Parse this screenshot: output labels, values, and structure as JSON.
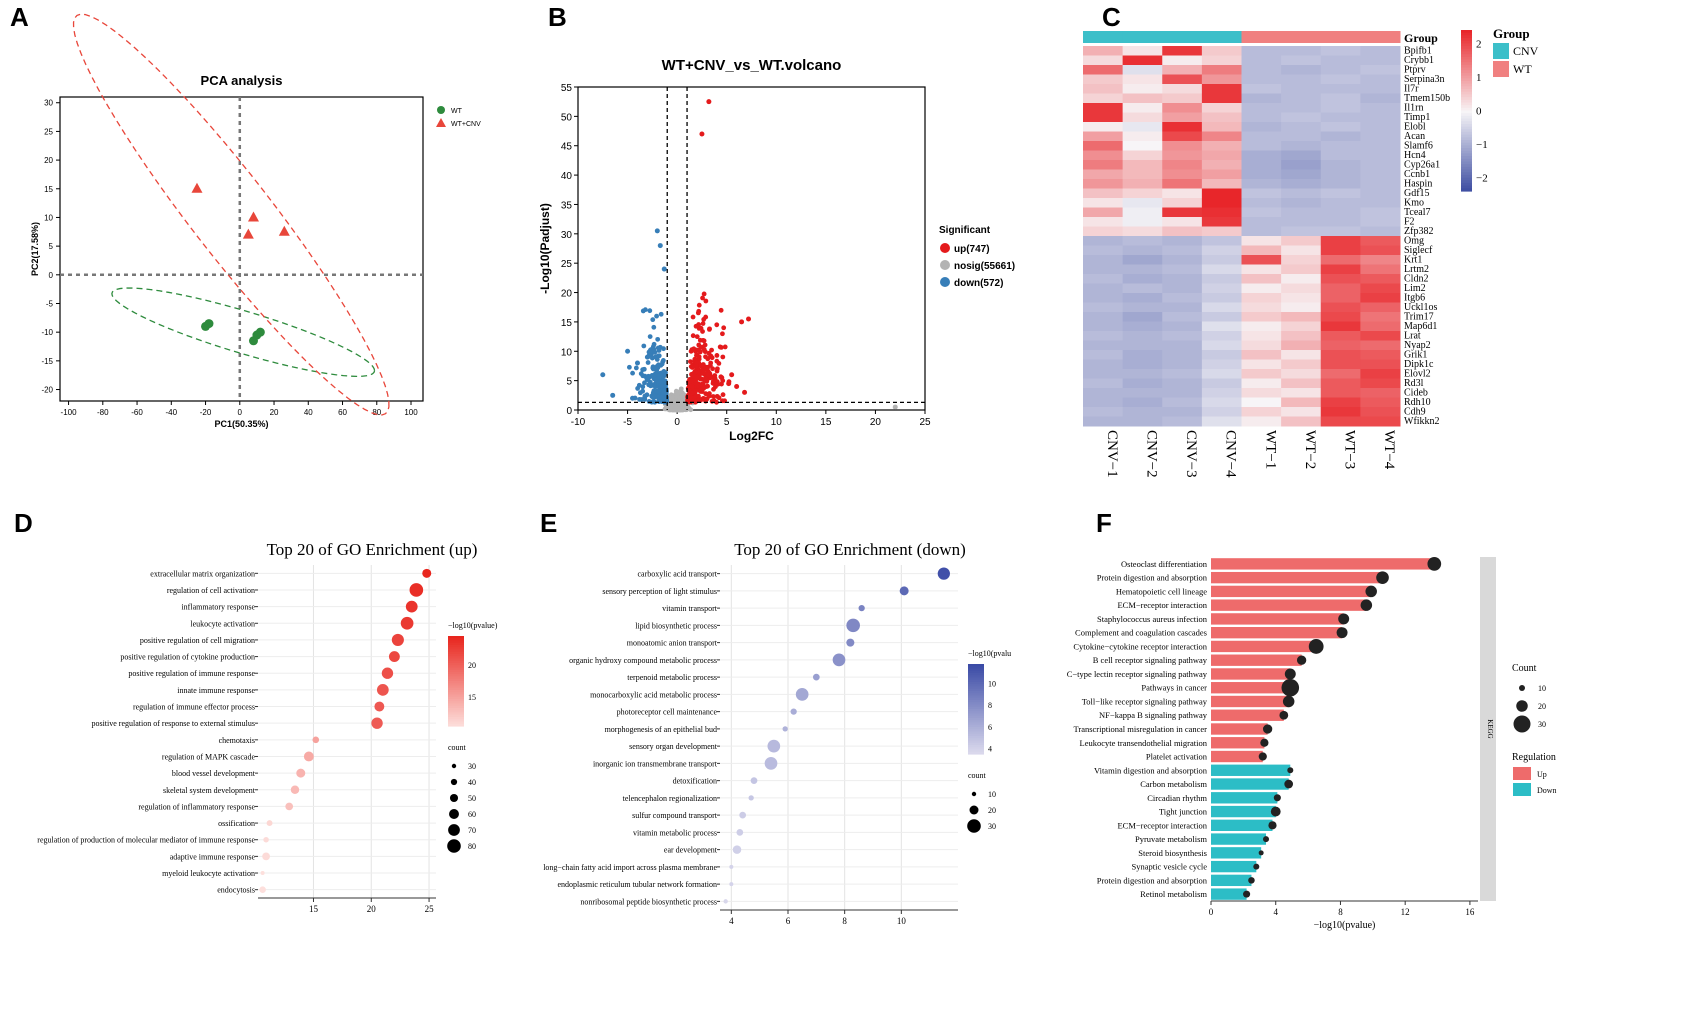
{
  "panel_letters": [
    "A",
    "B",
    "C",
    "D",
    "E",
    "F"
  ],
  "chart_data": [
    {
      "id": "A",
      "type": "scatter",
      "title": "PCA analysis",
      "xlabel": "PC1(50.35%)",
      "ylabel": "PC2(17.58%)",
      "xlim": [
        -105,
        107
      ],
      "ylim": [
        -22,
        31
      ],
      "xticks": [
        -100,
        -80,
        -60,
        -40,
        -20,
        0,
        20,
        40,
        60,
        80,
        100
      ],
      "yticks": [
        -20,
        -15,
        -10,
        -5,
        0,
        5,
        10,
        15,
        20,
        25,
        30
      ],
      "series": [
        {
          "name": "WT",
          "marker": "circle",
          "color": "#2e8b3d",
          "points": [
            [
              -20,
              -9
            ],
            [
              -18,
              -8.5
            ],
            [
              10,
              -10.5
            ],
            [
              12,
              -10
            ],
            [
              8,
              -11.5
            ]
          ],
          "ellipse": {
            "cx": 2,
            "cy": -10,
            "rx": 77,
            "ry": 3.8,
            "angle_deg": -5
          }
        },
        {
          "name": "WT+CNV",
          "marker": "triangle",
          "color": "#e8463a",
          "points": [
            [
              -25,
              15
            ],
            [
              8,
              10
            ],
            [
              26,
              7.5
            ],
            [
              5,
              7
            ]
          ],
          "ellipse": {
            "cx": -5,
            "cy": 10.5,
            "rx": 98,
            "ry": 10.5,
            "angle_deg": -20
          }
        }
      ]
    },
    {
      "id": "B",
      "type": "scatter",
      "title": "WT+CNV_vs_WT.volcano",
      "xlabel": "Log2FC",
      "ylabel": "-Log10(Padjust)",
      "xlim": [
        -10,
        25
      ],
      "ylim": [
        0,
        55
      ],
      "xticks": [
        -10,
        -5,
        0,
        5,
        10,
        15,
        20,
        25
      ],
      "yticks": [
        0,
        5,
        10,
        15,
        20,
        25,
        30,
        35,
        40,
        45,
        50,
        55
      ],
      "thresholds": {
        "log2fc": [
          -1,
          1
        ],
        "padj": 1.3
      },
      "legend_title": "Significant",
      "series": [
        {
          "name": "up(747)",
          "color": "#e41a1c",
          "direction": "up",
          "count": 747
        },
        {
          "name": "nosig(55661)",
          "color": "#b3b3b3",
          "direction": "none",
          "count": 55661
        },
        {
          "name": "down(572)",
          "color": "#377eb8",
          "direction": "down",
          "count": 572
        }
      ],
      "notable_points": {
        "up": [
          [
            3.2,
            52.5
          ],
          [
            2.5,
            47
          ],
          [
            6.5,
            15
          ],
          [
            7.2,
            15.5
          ],
          [
            5.5,
            6
          ],
          [
            4.5,
            5.5
          ],
          [
            6,
            4
          ],
          [
            5.2,
            4.5
          ],
          [
            6.8,
            3
          ]
        ],
        "down": [
          [
            -2,
            30.5
          ],
          [
            -1.7,
            28
          ],
          [
            -1.3,
            24
          ],
          [
            -5,
            10
          ],
          [
            -7.5,
            6
          ],
          [
            -4,
            8
          ],
          [
            -3,
            9
          ],
          [
            -6.5,
            2.5
          ],
          [
            -4.5,
            2
          ]
        ],
        "nosig": [
          [
            22,
            0.5
          ],
          [
            0.5,
            0.8
          ],
          [
            -0.5,
            0.6
          ]
        ]
      }
    },
    {
      "id": "C",
      "type": "heatmap",
      "annotation_title": "Group",
      "legend_title": "Group",
      "groups": [
        {
          "name": "CNV",
          "color": "#3cbfc9"
        },
        {
          "name": "WT",
          "color": "#f08080"
        }
      ],
      "columns": [
        "CNV−1",
        "CNV−2",
        "CNV−3",
        "CNV−4",
        "WT−1",
        "WT−2",
        "WT−3",
        "WT−4"
      ],
      "column_groups": [
        "CNV",
        "CNV",
        "CNV",
        "CNV",
        "WT",
        "WT",
        "WT",
        "WT"
      ],
      "rows": [
        "Bpifb1",
        "Crybb1",
        "Ptprv",
        "Serpina3n",
        "Il7r",
        "Tmem150b",
        "Il1rn",
        "Timp1",
        "Elobl",
        "Acan",
        "Slamf6",
        "Hcn4",
        "Cyp26a1",
        "Ccnb1",
        "Haspin",
        "Gdf15",
        "Kmo",
        "Tceal7",
        "F2",
        "Zfp382",
        "Omg",
        "Siglecf",
        "Krt1",
        "Lrtm2",
        "Cldn2",
        "Lim2",
        "Itgb6",
        "Uckl1os",
        "Trim17",
        "Map6d1",
        "Lrat",
        "Nyap2",
        "Grik1",
        "Dipk1c",
        "Elovl2",
        "Rd3l",
        "Cideb",
        "Rdh10",
        "Cdh9",
        "Wfikkn2"
      ],
      "scale_ticks": [
        "2",
        "1",
        "0",
        "−1",
        "−2"
      ],
      "scale_range": [
        -2.4,
        2.4
      ],
      "values": [
        [
          0.8,
          0.2,
          2.2,
          0.5,
          -0.8,
          -0.8,
          -0.7,
          -0.8
        ],
        [
          0.3,
          2.3,
          0.1,
          0.4,
          -0.8,
          -0.7,
          -0.8,
          -0.8
        ],
        [
          1.6,
          -0.3,
          0.8,
          1.4,
          -0.8,
          -0.9,
          -0.8,
          -0.7
        ],
        [
          0.5,
          0.2,
          1.9,
          1.1,
          -0.8,
          -0.8,
          -0.7,
          -0.8
        ],
        [
          0.6,
          0.1,
          0.3,
          2.2,
          -0.7,
          -0.8,
          -0.8,
          -0.8
        ],
        [
          0.4,
          0.6,
          0.5,
          2.2,
          -0.9,
          -0.8,
          -0.7,
          -0.9
        ],
        [
          2.2,
          0.1,
          1.2,
          0.4,
          -0.8,
          -0.8,
          -0.7,
          -0.8
        ],
        [
          2.2,
          0.3,
          1.0,
          0.6,
          -0.8,
          -0.7,
          -0.8,
          -0.8
        ],
        [
          0.1,
          -0.2,
          2.3,
          0.7,
          -0.9,
          -0.8,
          -0.7,
          -0.8
        ],
        [
          1.0,
          0.1,
          2.0,
          1.3,
          -0.8,
          -0.8,
          -0.9,
          -0.8
        ],
        [
          1.6,
          0.0,
          1.2,
          0.8,
          -0.8,
          -0.9,
          -0.8,
          -0.8
        ],
        [
          1.2,
          0.4,
          1.1,
          0.9,
          -1.0,
          -1.1,
          -0.8,
          -0.8
        ],
        [
          1.4,
          0.7,
          1.3,
          0.8,
          -1.0,
          -1.2,
          -0.9,
          -0.8
        ],
        [
          0.9,
          0.7,
          1.2,
          1.0,
          -1.0,
          -1.1,
          -0.9,
          -0.8
        ],
        [
          1.1,
          0.8,
          1.5,
          0.7,
          -0.9,
          -1.0,
          -0.9,
          -0.8
        ],
        [
          0.6,
          0.4,
          0.2,
          2.4,
          -0.7,
          -0.8,
          -0.7,
          -0.8
        ],
        [
          0.2,
          -0.2,
          0.4,
          2.4,
          -0.8,
          -0.9,
          -0.8,
          -0.8
        ],
        [
          0.9,
          -0.1,
          2.2,
          2.3,
          -0.7,
          -0.8,
          -0.8,
          -0.7
        ],
        [
          0.2,
          -0.1,
          0.2,
          2.2,
          -0.8,
          -0.8,
          -0.8,
          -0.7
        ],
        [
          0.4,
          0.3,
          0.6,
          0.5,
          -0.8,
          -0.7,
          -0.7,
          -0.8
        ],
        [
          -0.9,
          -0.8,
          -0.9,
          -0.7,
          0.2,
          0.5,
          2.1,
          1.8
        ],
        [
          -0.8,
          -0.9,
          -0.8,
          -0.5,
          0.7,
          0.2,
          2.1,
          1.9
        ],
        [
          -0.9,
          -1.1,
          -0.9,
          -0.6,
          1.9,
          0.4,
          1.6,
          1.3
        ],
        [
          -0.9,
          -0.9,
          -0.8,
          -0.4,
          0.2,
          0.5,
          2.1,
          1.5
        ],
        [
          -0.8,
          -1.0,
          -0.9,
          -0.6,
          0.6,
          0.1,
          1.9,
          1.8
        ],
        [
          -0.9,
          -0.8,
          -0.9,
          -0.5,
          0.1,
          0.3,
          1.7,
          2.0
        ],
        [
          -0.9,
          -1.0,
          -0.8,
          -0.6,
          0.4,
          0.2,
          1.7,
          2.1
        ],
        [
          -0.8,
          -0.9,
          -0.9,
          -0.4,
          0.3,
          0.1,
          1.9,
          1.7
        ],
        [
          -0.9,
          -1.1,
          -0.8,
          -0.6,
          0.5,
          0.7,
          2.0,
          1.5
        ],
        [
          -0.9,
          -1.0,
          -0.9,
          -0.3,
          0.1,
          0.4,
          2.2,
          1.6
        ],
        [
          -0.8,
          -0.9,
          -0.8,
          -0.5,
          0.2,
          0.6,
          1.8,
          2.0
        ],
        [
          -0.9,
          -0.9,
          -0.9,
          -0.4,
          0.3,
          0.8,
          1.7,
          1.6
        ],
        [
          -0.8,
          -1.0,
          -0.9,
          -0.6,
          0.6,
          0.2,
          1.9,
          1.8
        ],
        [
          -0.9,
          -1.0,
          -0.9,
          -0.5,
          0.2,
          0.5,
          1.9,
          1.9
        ],
        [
          -0.9,
          -0.9,
          -0.8,
          -0.4,
          0.5,
          0.3,
          1.6,
          2.1
        ],
        [
          -0.8,
          -1.0,
          -0.9,
          -0.6,
          0.1,
          0.6,
          1.8,
          2.0
        ],
        [
          -0.9,
          -0.9,
          -0.9,
          -0.5,
          0.3,
          0.2,
          1.8,
          1.7
        ],
        [
          -0.9,
          -1.0,
          -0.8,
          -0.4,
          0.0,
          0.7,
          2.1,
          1.8
        ],
        [
          -0.8,
          -0.9,
          -0.9,
          -0.5,
          0.4,
          0.2,
          2.2,
          1.9
        ],
        [
          -0.9,
          -0.9,
          -0.8,
          -0.3,
          0.1,
          0.6,
          2.0,
          2.0
        ]
      ]
    },
    {
      "id": "D",
      "type": "scatter",
      "title": "Top 20 of GO Enrichment (up)",
      "xlabel": "",
      "xlim": [
        10.2,
        25.6
      ],
      "xticks": [
        15,
        20,
        25
      ],
      "color_legend_title": "−log10(pvalue)",
      "color_range": [
        10.5,
        24.5
      ],
      "color_ticks": [
        15,
        20
      ],
      "color_low": "#fde0dd",
      "color_high": "#e8261e",
      "size_legend_title": "count",
      "size_ticks": [
        30,
        40,
        50,
        60,
        70,
        80
      ],
      "terms": [
        "extracellular matrix organization",
        "regulation of cell activation",
        "inflammatory response",
        "leukocyte activation",
        "positive regulation of cell migration",
        "positive regulation of cytokine production",
        "positive regulation of immune response",
        "innate immune response",
        "regulation of immune effector process",
        "positive regulation of response to external stimulus",
        "chemotaxis",
        "regulation of MAPK cascade",
        "blood vessel development",
        "skeletal system development",
        "regulation of inflammatory response",
        "ossification",
        "regulation of production of molecular mediator of immune response",
        "adaptive immune response",
        "myeloid leukocyte activation",
        "endocytosis"
      ],
      "x": [
        24.8,
        23.9,
        23.5,
        23.1,
        22.3,
        22.0,
        21.4,
        21.0,
        20.7,
        20.5,
        15.2,
        14.6,
        13.9,
        13.4,
        12.9,
        11.2,
        10.9,
        10.9,
        10.6,
        10.6
      ],
      "count": [
        55,
        80,
        70,
        75,
        72,
        65,
        68,
        70,
        60,
        68,
        42,
        60,
        55,
        52,
        48,
        38,
        36,
        48,
        28,
        42
      ]
    },
    {
      "id": "E",
      "type": "scatter",
      "title": "Top 20 of GO Enrichment (down)",
      "xlabel": "",
      "xlim": [
        3.6,
        12.0
      ],
      "xticks": [
        4,
        6,
        8,
        10
      ],
      "color_legend_title": "−log10(pvalu",
      "color_range": [
        3.5,
        11.8
      ],
      "color_ticks": [
        4,
        6,
        8,
        10
      ],
      "color_low": "#dedcee",
      "color_high": "#3b4ba6",
      "size_legend_title": "count",
      "size_ticks": [
        10,
        20,
        30
      ],
      "terms": [
        "carboxylic acid transport",
        "sensory perception of light stimulus",
        "vitamin transport",
        "lipid biosynthetic process",
        "monoatomic anion transport",
        "organic hydroxy compound metabolic process",
        "terpenoid metabolic process",
        "monocarboxylic acid metabolic process",
        "photoreceptor cell maintenance",
        "morphogenesis of an epithelial bud",
        "sensory organ development",
        "inorganic ion transmembrane transport",
        "detoxification",
        "telencephalon regionalization",
        "sulfur compound transport",
        "vitamin metabolic process",
        "ear development",
        "long−chain fatty acid import across plasma membrane",
        "endoplasmic reticulum tubular network formation",
        "nonribosomal peptide biosynthetic process"
      ],
      "x": [
        11.5,
        10.1,
        8.6,
        8.3,
        8.2,
        7.8,
        7.0,
        6.5,
        6.2,
        5.9,
        5.5,
        5.4,
        4.8,
        4.7,
        4.4,
        4.3,
        4.2,
        4.0,
        4.0,
        3.8
      ],
      "count": [
        27,
        20,
        14,
        30,
        18,
        28,
        15,
        28,
        14,
        12,
        28,
        28,
        15,
        12,
        15,
        15,
        19,
        8,
        8,
        10
      ]
    },
    {
      "id": "F",
      "type": "bar",
      "orientation": "horizontal",
      "xlabel": "−log10(pvalue)",
      "xlim": [
        0,
        16.5
      ],
      "xticks": [
        0,
        4,
        8,
        12,
        16
      ],
      "facet_label": "KEGG",
      "size_legend_title": "Count",
      "size_ticks": [
        10,
        20,
        30
      ],
      "regulation_legend_title": "Regulation",
      "regulation_levels": [
        {
          "name": "Up",
          "color": "#ee6b6b"
        },
        {
          "name": "Down",
          "color": "#2cbdc6"
        }
      ],
      "categories": [
        "Osteoclast differentiation",
        "Protein digestion and absorption",
        "Hematopoietic cell lineage",
        "ECM−receptor interaction",
        "Staphylococcus aureus infection",
        "Complement and coagulation cascades",
        "Cytokine−cytokine receptor interaction",
        "B cell receptor signaling pathway",
        "C−type lectin receptor signaling pathway",
        "Pathways in cancer",
        "Toll−like receptor signaling pathway",
        "NF−kappa B signaling pathway",
        "Transcriptional misregulation in cancer",
        "Leukocyte transendothelial migration",
        "Platelet activation",
        "Vitamin digestion and absorption",
        "Carbon metabolism",
        "Circadian rhythm",
        "Tight junction",
        "ECM−receptor interaction",
        "Pyruvate metabolism",
        "Steroid biosynthesis",
        "Synaptic vesicle cycle",
        "Protein digestion and absorption",
        "Retinol metabolism"
      ],
      "regulation": [
        "Up",
        "Up",
        "Up",
        "Up",
        "Up",
        "Up",
        "Up",
        "Up",
        "Up",
        "Up",
        "Up",
        "Up",
        "Up",
        "Up",
        "Up",
        "Down",
        "Down",
        "Down",
        "Down",
        "Down",
        "Down",
        "Down",
        "Down",
        "Down",
        "Down"
      ],
      "values": [
        13.8,
        10.6,
        9.9,
        9.6,
        8.2,
        8.1,
        6.5,
        5.6,
        4.9,
        4.9,
        4.8,
        4.5,
        3.5,
        3.3,
        3.2,
        4.9,
        4.8,
        4.1,
        4.0,
        3.8,
        3.4,
        3.1,
        2.8,
        2.5,
        2.2
      ],
      "count": [
        24,
        22,
        20,
        20,
        19,
        19,
        26,
        16,
        19,
        31,
        20,
        15,
        16,
        14,
        14,
        10,
        15,
        12,
        17,
        14,
        10,
        7,
        10,
        11,
        12
      ]
    }
  ]
}
